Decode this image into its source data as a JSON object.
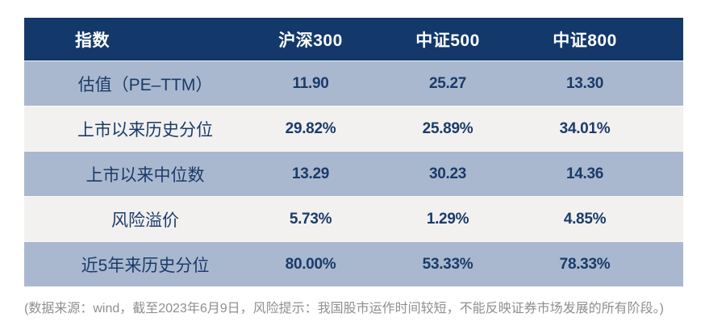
{
  "table": {
    "columns": [
      "指数",
      "沪深300",
      "中证500",
      "中证800"
    ],
    "rows": [
      {
        "label": "估值（PE–TTM）",
        "values": [
          "11.90",
          "25.27",
          "13.30"
        ]
      },
      {
        "label": "上市以来历史分位",
        "values": [
          "29.82%",
          "25.89%",
          "34.01%"
        ]
      },
      {
        "label": "上市以来中位数",
        "values": [
          "13.29",
          "30.23",
          "14.36"
        ]
      },
      {
        "label": "风险溢价",
        "values": [
          "5.73%",
          "1.29%",
          "4.85%"
        ]
      },
      {
        "label": "近5年来历史分位",
        "values": [
          "80.00%",
          "53.33%",
          "78.33%"
        ]
      }
    ]
  },
  "footer": {
    "note": "(数据来源：wind，截至2023年6月9日，风险提示：我国股市运作时间较短，不能反映证券市场发展的所有阶段。)"
  },
  "colors": {
    "header_bg": "#13386A",
    "row_alt_bg": "#A9B8CE",
    "row_bg": "#F2F1EF",
    "text_navy": "#1A3B6B",
    "footer_gray": "#8F8F8F"
  },
  "chart_data": {
    "type": "table",
    "title": "",
    "columns": [
      "指数",
      "沪深300",
      "中证500",
      "中证800"
    ],
    "rows": [
      [
        "估值（PE–TTM）",
        11.9,
        25.27,
        13.3
      ],
      [
        "上市以来历史分位",
        "29.82%",
        "25.89%",
        "34.01%"
      ],
      [
        "上市以来中位数",
        13.29,
        30.23,
        14.36
      ],
      [
        "风险溢价",
        "5.73%",
        "1.29%",
        "4.85%"
      ],
      [
        "近5年来历史分位",
        "80.00%",
        "53.33%",
        "78.33%"
      ]
    ],
    "annotations": [
      "(数据来源：wind，截至2023年6月9日，风险提示：我国股市运作时间较短，不能反映证券市场发展的所有阶段。)"
    ],
    "layout_hints": {
      "header_style": "dark-navy",
      "body_style": "alternating blue-gray / off-white",
      "value_alignment": "center"
    }
  }
}
